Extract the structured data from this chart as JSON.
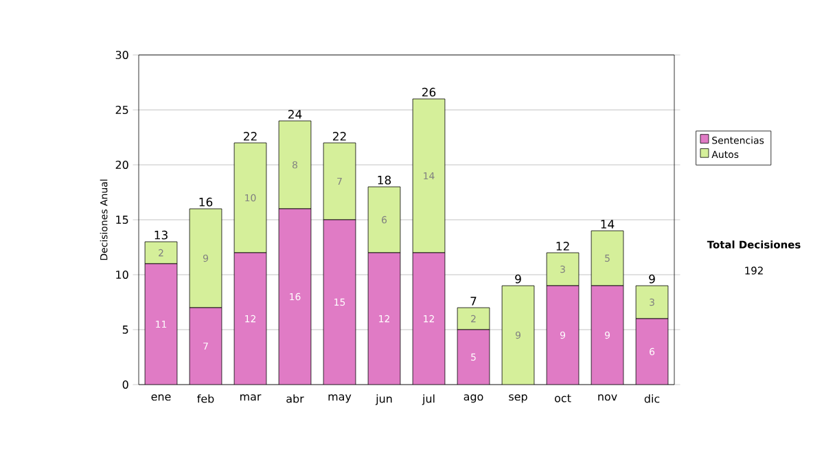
{
  "chart_data": {
    "type": "bar",
    "stacked": true,
    "ylabel": "Decisiones Anual",
    "categories": [
      "ene",
      "feb",
      "mar",
      "abr",
      "may",
      "jun",
      "jul",
      "ago",
      "sep",
      "oct",
      "nov",
      "dic"
    ],
    "series": [
      {
        "name": "Sentencias",
        "color": "#e07bc5",
        "values": [
          11,
          7,
          12,
          16,
          15,
          12,
          12,
          5,
          0,
          9,
          9,
          6
        ],
        "value_labels": [
          "11",
          "7",
          "12",
          "16",
          "15",
          "12",
          "12",
          "5",
          null,
          "9",
          "9",
          "6"
        ]
      },
      {
        "name": "Autos",
        "color": "#d5ef9a",
        "values": [
          2,
          9,
          10,
          8,
          7,
          6,
          14,
          2,
          9,
          3,
          5,
          3
        ],
        "value_labels": [
          "2",
          "9",
          "10",
          "8",
          "7",
          "6",
          "14",
          "2",
          "9",
          "3",
          "5",
          "3"
        ]
      }
    ],
    "totals": [
      "13",
      "16",
      "22",
      "24",
      "22",
      "18",
      "26",
      "7",
      "9",
      "12",
      "14",
      "9"
    ],
    "ylim": [
      0,
      30
    ],
    "yticks": [
      0,
      5,
      10,
      15,
      20,
      25,
      30
    ],
    "grid": "y",
    "legend": "right",
    "annotations": [
      "Total Decisiones",
      "192"
    ]
  }
}
